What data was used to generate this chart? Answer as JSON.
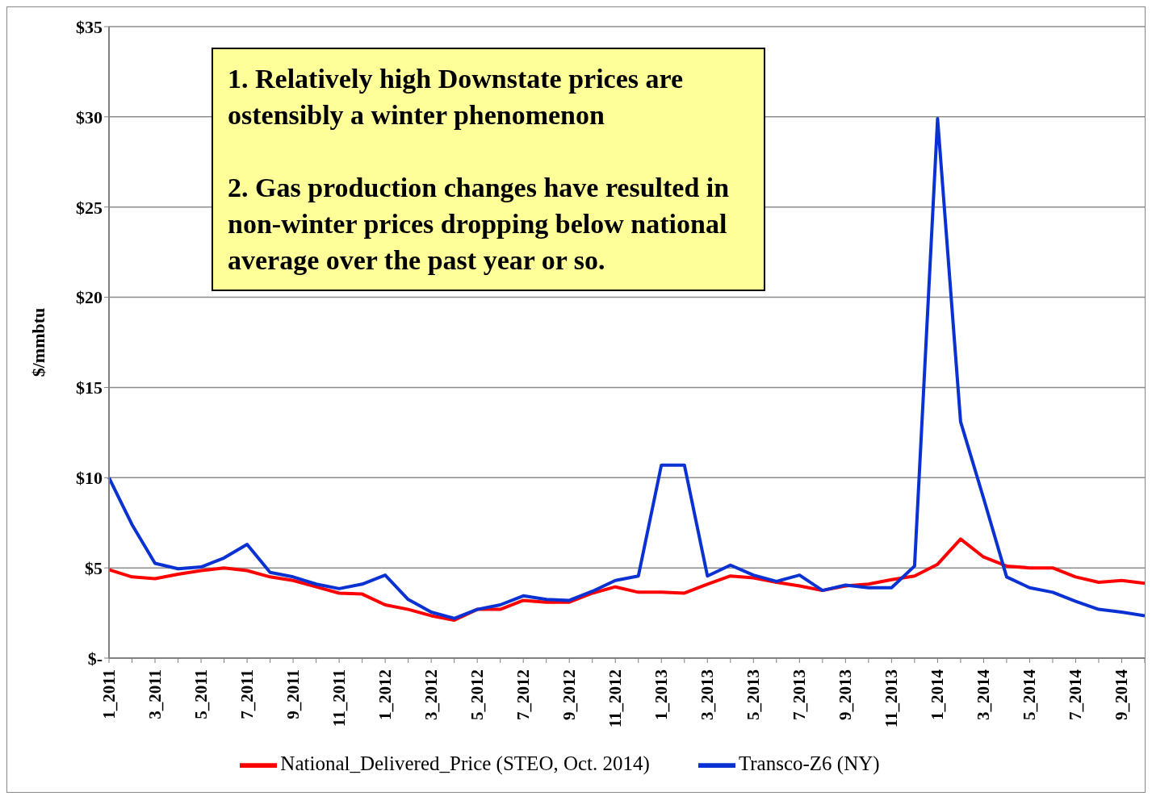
{
  "chart_data": {
    "type": "line",
    "ylabel": "$/mmbtu",
    "categories": [
      "1_2011",
      null,
      "3_2011",
      null,
      "5_2011",
      null,
      "7_2011",
      null,
      "9_2011",
      null,
      "11_2011",
      null,
      "1_2012",
      null,
      "3_2012",
      null,
      "5_2012",
      null,
      "7_2012",
      null,
      "9_2012",
      null,
      "11_2012",
      null,
      "1_2013",
      null,
      "3_2013",
      null,
      "5_2013",
      null,
      "7_2013",
      null,
      "9_2013",
      null,
      "11_2013",
      null,
      "1_2014",
      null,
      "3_2014",
      null,
      "5_2014",
      null,
      "7_2014",
      null,
      "9_2014",
      null
    ],
    "series": [
      {
        "name": "National_Delivered_Price (STEO, Oct. 2014)",
        "color": "#ff0000",
        "values": [
          4.9,
          4.5,
          4.4,
          4.65,
          4.85,
          5.0,
          4.85,
          4.5,
          4.3,
          3.95,
          3.6,
          3.55,
          2.95,
          2.7,
          2.35,
          2.1,
          2.7,
          2.7,
          3.2,
          3.1,
          3.1,
          3.6,
          3.95,
          3.65,
          3.65,
          3.6,
          4.1,
          4.55,
          4.45,
          4.2,
          4.0,
          3.75,
          4.0,
          4.1,
          4.35,
          4.55,
          5.2,
          6.6,
          5.6,
          5.1,
          5.0,
          5.0,
          4.5,
          4.2,
          4.3,
          4.15
        ]
      },
      {
        "name": "Transco-Z6 (NY)",
        "color": "#0a32d2",
        "values": [
          10.0,
          7.4,
          5.25,
          4.95,
          5.05,
          5.55,
          6.3,
          4.75,
          4.5,
          4.1,
          3.85,
          4.1,
          4.6,
          3.25,
          2.55,
          2.2,
          2.7,
          2.95,
          3.45,
          3.25,
          3.2,
          3.7,
          4.3,
          4.55,
          10.7,
          10.7,
          4.55,
          5.15,
          4.6,
          4.25,
          4.6,
          3.75,
          4.05,
          3.9,
          3.9,
          5.1,
          29.9,
          13.1,
          8.85,
          4.5,
          3.9,
          3.65,
          3.15,
          2.7,
          2.55,
          2.35
        ]
      }
    ],
    "ylim": [
      0,
      35
    ],
    "yticks": [
      {
        "value": 0,
        "label": "$-"
      },
      {
        "value": 5,
        "label": "$5"
      },
      {
        "value": 10,
        "label": "$10"
      },
      {
        "value": 15,
        "label": "$15"
      },
      {
        "value": 20,
        "label": "$20"
      },
      {
        "value": 25,
        "label": "$25"
      },
      {
        "value": 30,
        "label": "$30"
      },
      {
        "value": 35,
        "label": "$35"
      }
    ],
    "grid": "y",
    "legend": "bottom",
    "marker": "none",
    "line_style": "solid",
    "annotations": [
      "1. Relatively high Downstate prices are ostensibly a winter phenomenon",
      "2. Gas production changes have resulted in non-winter prices dropping below national average over the past year or so."
    ]
  }
}
